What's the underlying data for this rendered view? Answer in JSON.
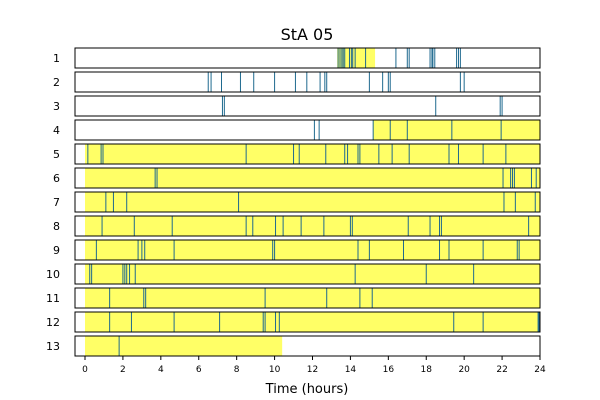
{
  "chart_data": {
    "type": "raster",
    "title": "StA 05",
    "xlabel": "Time (hours)",
    "xlim": [
      0,
      24
    ],
    "xticks": [
      "0",
      "2",
      "4",
      "6",
      "8",
      "10",
      "12",
      "14",
      "16",
      "18",
      "20",
      "22",
      "24"
    ],
    "colors": {
      "fill": "#ffff66",
      "event": "#1f6a8f",
      "frame": "#000000"
    },
    "rows": [
      {
        "label": "1",
        "filled": [
          [
            13.3,
            15.3
          ]
        ],
        "events": [
          13.35,
          13.45,
          13.55,
          13.62,
          13.7,
          13.95,
          14.05,
          14.12,
          14.25,
          14.8,
          16.4,
          17.0,
          17.1,
          18.2,
          18.3,
          18.35,
          18.45,
          19.6,
          19.7,
          19.8
        ]
      },
      {
        "label": "2",
        "filled": [],
        "events": [
          6.5,
          6.65,
          7.2,
          8.2,
          8.9,
          10.0,
          11.1,
          11.7,
          12.4,
          12.65,
          12.75,
          15.0,
          15.7,
          16.0,
          16.1,
          19.8,
          20.0
        ]
      },
      {
        "label": "3",
        "filled": [],
        "events": [
          7.25,
          7.35,
          18.5,
          21.9,
          22.0
        ]
      },
      {
        "label": "4",
        "filled": [
          [
            15.2,
            24
          ]
        ],
        "events": [
          12.1,
          12.35,
          15.2,
          16.1,
          17.0,
          19.35,
          21.95
        ]
      },
      {
        "label": "5",
        "filled": [
          [
            0,
            24
          ]
        ],
        "events": [
          0.15,
          0.85,
          0.95,
          8.5,
          11.0,
          11.3,
          12.7,
          13.7,
          13.85,
          14.4,
          14.5,
          15.5,
          16.2,
          17.1,
          19.2,
          19.7,
          21.0,
          22.2
        ]
      },
      {
        "label": "6",
        "filled": [
          [
            0,
            24
          ]
        ],
        "events": [
          3.7,
          3.8,
          22.05,
          22.45,
          22.55,
          22.65,
          23.55,
          23.8
        ]
      },
      {
        "label": "7",
        "filled": [
          [
            0,
            24
          ]
        ],
        "events": [
          1.1,
          1.5,
          2.2,
          8.1,
          22.1,
          22.7,
          23.75
        ]
      },
      {
        "label": "8",
        "filled": [
          [
            0,
            24
          ]
        ],
        "events": [
          0.9,
          2.6,
          4.6,
          8.5,
          8.85,
          10.05,
          10.45,
          11.4,
          12.6,
          14.0,
          14.1,
          17.05,
          18.2,
          18.7,
          18.8,
          23.4
        ]
      },
      {
        "label": "9",
        "filled": [
          [
            0,
            24
          ]
        ],
        "events": [
          0.6,
          2.8,
          3.0,
          3.15,
          4.7,
          9.9,
          10.0,
          14.4,
          15.0,
          16.8,
          18.7,
          19.2,
          21.0,
          22.8,
          22.9
        ]
      },
      {
        "label": "10",
        "filled": [
          [
            0,
            24
          ]
        ],
        "events": [
          0.25,
          0.35,
          2.0,
          2.1,
          2.2,
          2.35,
          2.65,
          14.25,
          18.0,
          20.5
        ]
      },
      {
        "label": "11",
        "filled": [
          [
            0,
            24
          ]
        ],
        "events": [
          1.3,
          3.1,
          3.2,
          9.5,
          12.75,
          14.5,
          15.15
        ]
      },
      {
        "label": "12",
        "filled": [
          [
            0,
            24
          ]
        ],
        "events": [
          1.3,
          2.45,
          4.7,
          7.1,
          9.4,
          9.5,
          10.05,
          10.25,
          19.45,
          21.0,
          23.9,
          23.95
        ]
      },
      {
        "label": "13",
        "filled": [
          [
            0,
            10.4
          ]
        ],
        "events": [
          1.8
        ]
      }
    ]
  }
}
